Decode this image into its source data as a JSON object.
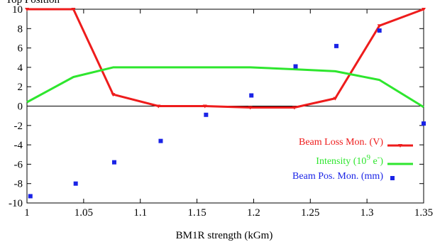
{
  "chart_data": {
    "type": "line",
    "title": "",
    "xlabel": "BM1R strength (kGm)",
    "ylabel": "",
    "xlim": [
      1,
      1.35
    ],
    "ylim": [
      -10,
      10
    ],
    "x_ticks": [
      1,
      1.05,
      1.1,
      1.15,
      1.2,
      1.25,
      1.3,
      1.35
    ],
    "x_tick_labels": [
      "1",
      "1.05",
      "1.1",
      "1.15",
      "1.2",
      "1.25",
      "1.3",
      "1.35"
    ],
    "y_ticks": [
      -10,
      -8,
      -6,
      -4,
      -2,
      0,
      2,
      4,
      6,
      8,
      10
    ],
    "y_tick_labels": [
      "-10",
      "-8",
      "-6",
      "-4",
      "-2",
      "0",
      "2",
      "4",
      "6",
      "8",
      "10"
    ],
    "grid": false,
    "zero_line": true,
    "legend_position": "bottom-right",
    "top_left_fragment": "Top Position",
    "series": [
      {
        "name_prefix": "Beam Loss Mon. (V)",
        "name_suffix": "",
        "name_sup": "",
        "kind": "line-with-markers",
        "color": "#ee1c1c",
        "x": [
          1.0,
          1.041,
          1.076,
          1.116,
          1.157,
          1.197,
          1.236,
          1.272,
          1.311,
          1.35
        ],
        "y": [
          10.0,
          10.0,
          1.2,
          0.0,
          0.0,
          -0.15,
          -0.15,
          0.8,
          8.3,
          10.0
        ]
      },
      {
        "name_prefix": "Intensity (10",
        "name_suffix": " e",
        "name_sup": "9",
        "name_sup2": "-",
        "name_end": ")",
        "kind": "line",
        "color": "#2ee62e",
        "x": [
          1.0,
          1.041,
          1.076,
          1.116,
          1.157,
          1.197,
          1.236,
          1.272,
          1.311,
          1.35
        ],
        "y": [
          0.4,
          3.0,
          4.0,
          4.0,
          4.0,
          4.0,
          3.8,
          3.6,
          2.7,
          -0.1
        ]
      },
      {
        "name_prefix": "Beam Pos. Mon. (mm)",
        "name_suffix": "",
        "name_sup": "",
        "kind": "markers",
        "color": "#1a23e6",
        "x": [
          1.003,
          1.043,
          1.077,
          1.118,
          1.158,
          1.198,
          1.237,
          1.273,
          1.311,
          1.35
        ],
        "y": [
          -9.3,
          -8.0,
          -5.8,
          -3.6,
          -0.9,
          1.1,
          4.1,
          6.2,
          7.8,
          -1.8
        ]
      }
    ]
  }
}
